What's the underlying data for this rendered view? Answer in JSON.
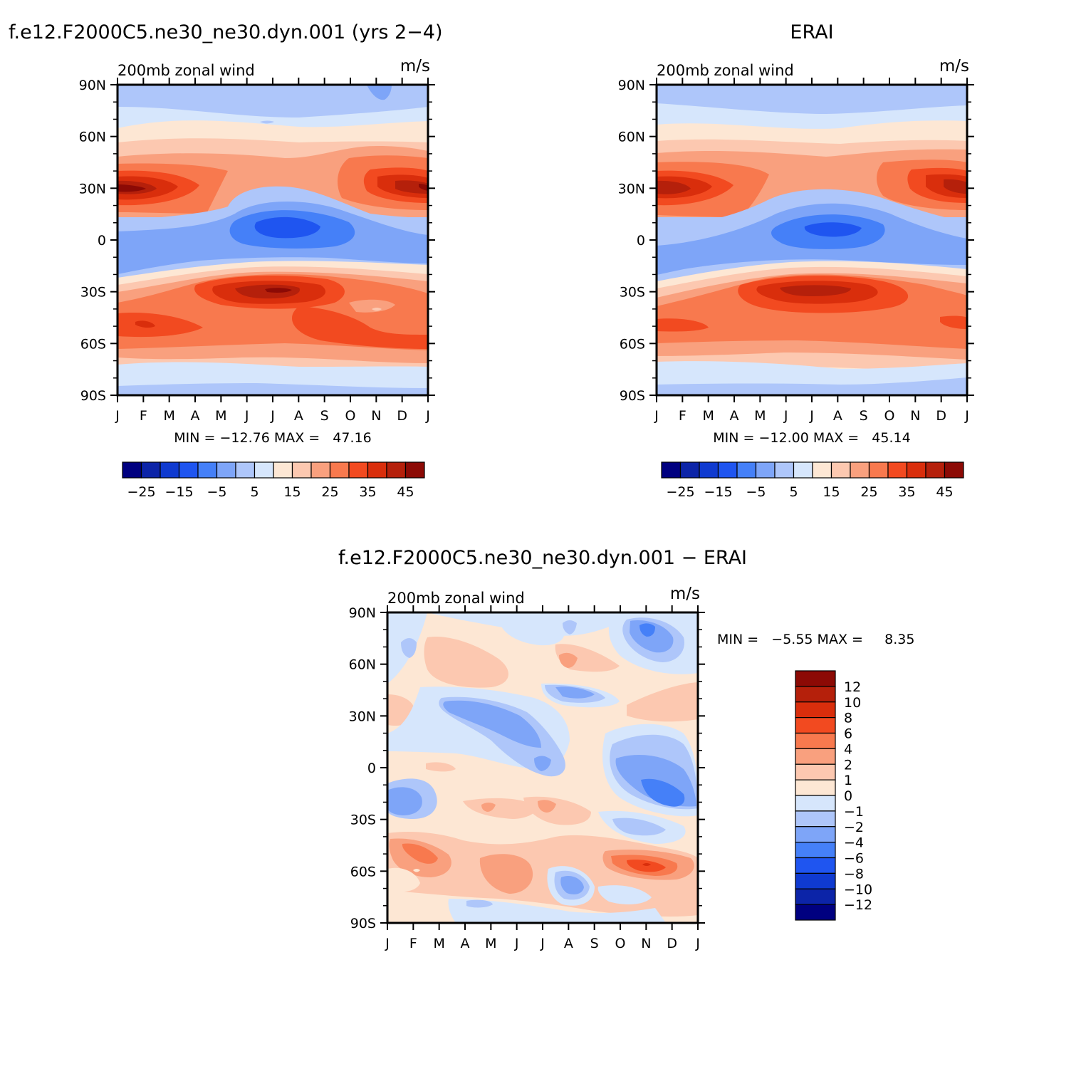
{
  "chart_data": [
    {
      "type": "contour",
      "id": "model",
      "title": "f.e12.F2000C5.ne30_ne30.dyn.001 (yrs 2−4)",
      "subtitle_left": "200mb zonal wind",
      "units": "m/s",
      "xlabel": "",
      "ylabel": "",
      "xticks": [
        "J",
        "F",
        "M",
        "A",
        "M",
        "J",
        "J",
        "A",
        "S",
        "O",
        "N",
        "D",
        "J"
      ],
      "yticks": [
        "90N",
        "60N",
        "30N",
        "0",
        "30S",
        "60S",
        "90S"
      ],
      "yrange": [
        90,
        -90
      ],
      "min_label": "MIN = −12.76 MAX =   47.16",
      "min": -12.76,
      "max": 47.16,
      "colorbar": {
        "orientation": "horizontal",
        "levels": [
          -30,
          -25,
          -20,
          -15,
          -10,
          -5,
          0,
          5,
          10,
          15,
          20,
          25,
          30,
          35,
          40,
          45
        ],
        "labels": [
          "−25",
          "−15",
          "−5",
          "5",
          "15",
          "25",
          "35",
          "45"
        ],
        "colors": [
          "#000080",
          "#0c24a8",
          "#0f3ad0",
          "#1f55f0",
          "#4580f8",
          "#7ea5f8",
          "#aec6fa",
          "#d6e6fc",
          "#fde7d4",
          "#fcc8b0",
          "#f9a07e",
          "#f8794e",
          "#f24a20",
          "#d92e0c",
          "#b5200b",
          "#8c0a05"
        ]
      },
      "field_features": [
        {
          "label": "NH jet winter max",
          "month": 0.5,
          "lat": 30,
          "value": 47
        },
        {
          "label": "NH jet Dec max",
          "month": 11.5,
          "lat": 33,
          "value": 42
        },
        {
          "label": "equatorial easterlies",
          "month": 7.0,
          "lat": 5,
          "value": -12
        },
        {
          "label": "SH jet Jul max",
          "month": 6.8,
          "lat": -28,
          "value": 42
        },
        {
          "label": "SH jet Feb max",
          "month": 1.2,
          "lat": -48,
          "value": 35
        }
      ]
    },
    {
      "type": "contour",
      "id": "obs",
      "title": "ERAI",
      "subtitle_left": "200mb zonal wind",
      "units": "m/s",
      "xticks": [
        "J",
        "F",
        "M",
        "A",
        "M",
        "J",
        "J",
        "A",
        "S",
        "O",
        "N",
        "D",
        "J"
      ],
      "yticks": [
        "90N",
        "60N",
        "30N",
        "0",
        "30S",
        "60S",
        "90S"
      ],
      "yrange": [
        90,
        -90
      ],
      "min_label": "MIN = −12.00 MAX =   45.14",
      "min": -12.0,
      "max": 45.14,
      "colorbar": {
        "orientation": "horizontal",
        "levels": [
          -30,
          -25,
          -20,
          -15,
          -10,
          -5,
          0,
          5,
          10,
          15,
          20,
          25,
          30,
          35,
          40,
          45
        ],
        "labels": [
          "−25",
          "−15",
          "−5",
          "5",
          "15",
          "25",
          "35",
          "45"
        ],
        "colors": [
          "#000080",
          "#0c24a8",
          "#0f3ad0",
          "#1f55f0",
          "#4580f8",
          "#7ea5f8",
          "#aec6fa",
          "#d6e6fc",
          "#fde7d4",
          "#fcc8b0",
          "#f9a07e",
          "#f8794e",
          "#f24a20",
          "#d92e0c",
          "#b5200b",
          "#8c0a05"
        ]
      },
      "field_features": [
        {
          "label": "NH jet winter max",
          "month": 0.5,
          "lat": 30,
          "value": 45
        },
        {
          "label": "equatorial easterlies",
          "month": 7.3,
          "lat": 4,
          "value": -12
        },
        {
          "label": "SH jet Jul max",
          "month": 7.0,
          "lat": -28,
          "value": 40
        }
      ]
    },
    {
      "type": "contour",
      "id": "diff",
      "title": "f.e12.F2000C5.ne30_ne30.dyn.001 − ERAI",
      "subtitle_left": "200mb zonal wind",
      "units": "m/s",
      "xticks": [
        "J",
        "F",
        "M",
        "A",
        "M",
        "J",
        "J",
        "A",
        "S",
        "O",
        "N",
        "D",
        "J"
      ],
      "yticks": [
        "90N",
        "60N",
        "30N",
        "0",
        "30S",
        "60S",
        "90S"
      ],
      "yrange": [
        90,
        -90
      ],
      "min_label": "MIN =   −5.55 MAX =     8.35",
      "min": -5.55,
      "max": 8.35,
      "colorbar": {
        "orientation": "vertical",
        "labels": [
          "12",
          "10",
          "8",
          "6",
          "4",
          "2",
          "1",
          "0",
          "−1",
          "−2",
          "−4",
          "−6",
          "−8",
          "−10",
          "−12"
        ],
        "colors": [
          "#8c0a05",
          "#b5200b",
          "#d92e0c",
          "#f24a20",
          "#f8794e",
          "#f9a07e",
          "#fcc8b0",
          "#fde7d4",
          "#d6e6fc",
          "#aec6fa",
          "#7ea5f8",
          "#4580f8",
          "#1f55f0",
          "#0f3ad0",
          "#0c24a8",
          "#000080"
        ]
      },
      "field_features": [
        {
          "label": "Nov SH positive",
          "month": 10.0,
          "lat": -57,
          "value": 8
        },
        {
          "label": "Nov tropical negative",
          "month": 10.0,
          "lat": -10,
          "value": -5
        },
        {
          "label": "Nov Arctic negative",
          "month": 10.0,
          "lat": 80,
          "value": -5
        }
      ]
    }
  ]
}
